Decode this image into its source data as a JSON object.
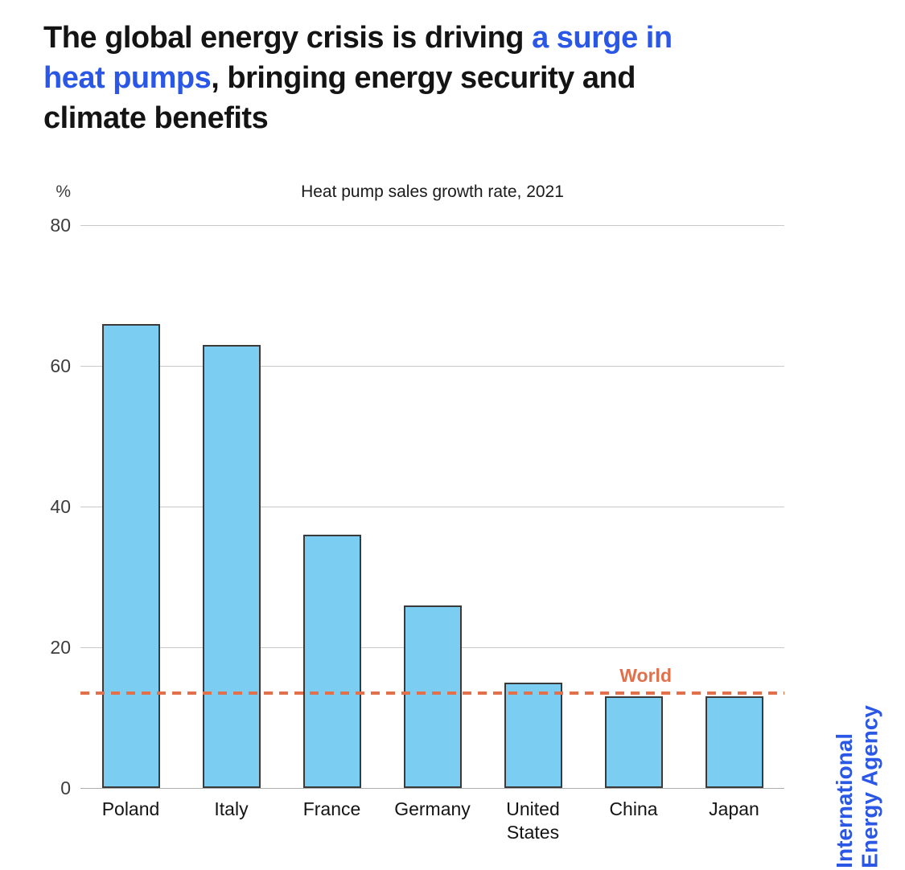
{
  "title": {
    "l1a": "The global energy crisis is driving ",
    "l1b": "a surge in",
    "l2a": "heat pumps",
    "l2b": ", bringing energy security and",
    "l3": "climate benefits"
  },
  "chart_data": {
    "type": "bar",
    "title": "Heat pump sales growth rate, 2021",
    "unit_label": "%",
    "categories": [
      "Poland",
      "Italy",
      "France",
      "Germany",
      "United States",
      "China",
      "Japan"
    ],
    "values": [
      66,
      63,
      36,
      26,
      15,
      13,
      13
    ],
    "reference_line": {
      "label": "World",
      "value": 13.5
    },
    "ylim": [
      0,
      80
    ],
    "yticks": [
      0,
      20,
      40,
      60,
      80
    ],
    "grid": true,
    "legend_position": "none",
    "bar_color": "#7BCEF2",
    "bar_border_color": "#3A3A3A",
    "reference_color": "#E2714B"
  },
  "source": {
    "line1": "International",
    "line2": "Energy Agency"
  },
  "colors": {
    "accent_blue": "#2B57E6",
    "text_dark": "#141414",
    "grid_line": "#C9C9C9",
    "axis_line": "#ADADAD",
    "bar_fill": "#7BCEF2",
    "bar_border": "#3A3A3A",
    "reference_orange": "#E2714B"
  }
}
